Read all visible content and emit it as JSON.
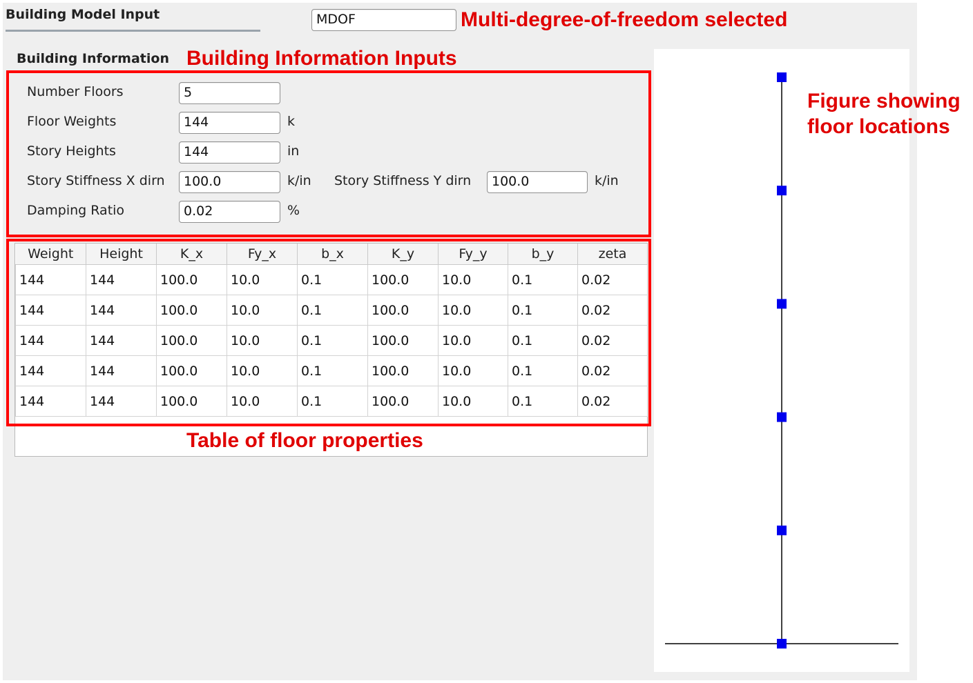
{
  "header": {
    "title": "Building Model Input",
    "model_type": "MDOF"
  },
  "building_info": {
    "title": "Building Information",
    "fields": {
      "number_floors": {
        "label": "Number Floors",
        "value": "5"
      },
      "floor_weights": {
        "label": "Floor Weights",
        "value": "144",
        "unit": "k"
      },
      "story_heights": {
        "label": "Story Heights",
        "value": "144",
        "unit": "in"
      },
      "stiffness_x": {
        "label": "Story Stiffness X dirn",
        "value": "100.0",
        "unit": "k/in"
      },
      "stiffness_y": {
        "label": "Story Stiffness Y dirn",
        "value": "100.0",
        "unit": "k/in"
      },
      "damping_ratio": {
        "label": "Damping Ratio",
        "value": "0.02",
        "unit": "%"
      }
    }
  },
  "floor_table": {
    "columns": [
      "Weight",
      "Height",
      "K_x",
      "Fy_x",
      "b_x",
      "K_y",
      "Fy_y",
      "b_y",
      "zeta"
    ],
    "rows": [
      [
        "144",
        "144",
        "100.0",
        "10.0",
        "0.1",
        "100.0",
        "10.0",
        "0.1",
        "0.02"
      ],
      [
        "144",
        "144",
        "100.0",
        "10.0",
        "0.1",
        "100.0",
        "10.0",
        "0.1",
        "0.02"
      ],
      [
        "144",
        "144",
        "100.0",
        "10.0",
        "0.1",
        "100.0",
        "10.0",
        "0.1",
        "0.02"
      ],
      [
        "144",
        "144",
        "100.0",
        "10.0",
        "0.1",
        "100.0",
        "10.0",
        "0.1",
        "0.02"
      ],
      [
        "144",
        "144",
        "100.0",
        "10.0",
        "0.1",
        "100.0",
        "10.0",
        "0.1",
        "0.02"
      ]
    ]
  },
  "figure": {
    "num_floors": 5,
    "node_color": "#0000ee"
  },
  "annotations": {
    "mdof": "Multi-degree-of-freedom selected",
    "building_info": "Building Information Inputs",
    "figure_line1": "Figure showing",
    "figure_line2": "floor locations",
    "table": "Table of floor properties",
    "color": "#e00000"
  }
}
